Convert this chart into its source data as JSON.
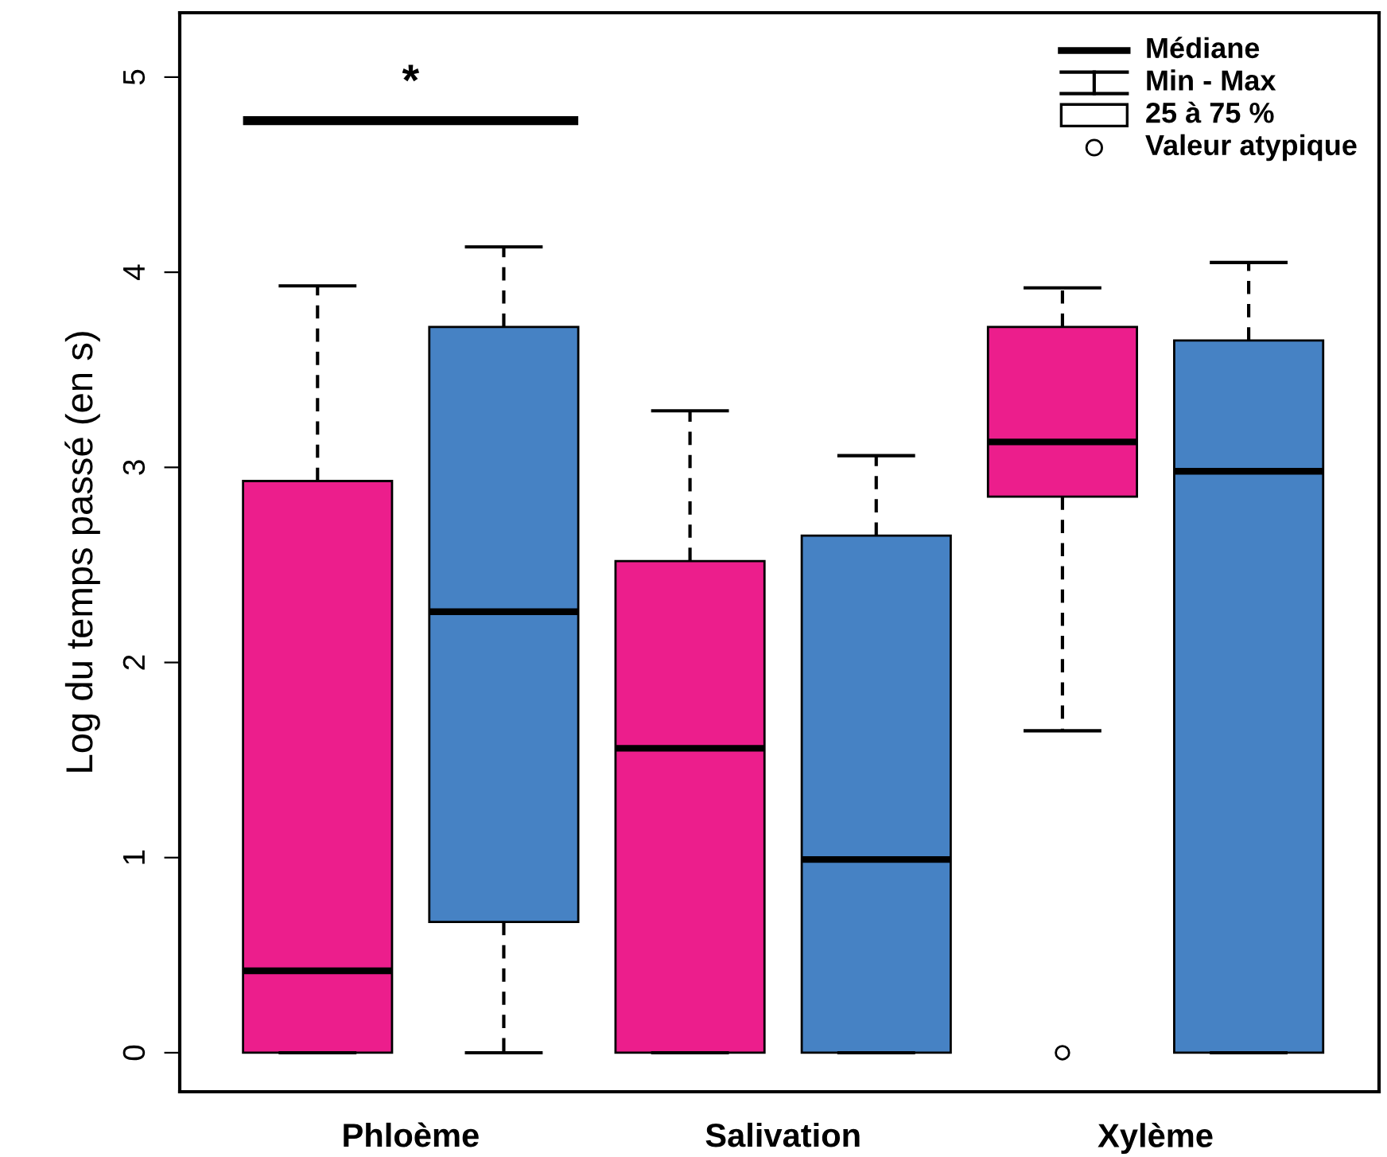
{
  "chart_data": {
    "type": "box",
    "ylabel": "Log du temps passé (en s)",
    "categories": [
      "Phloème",
      "Salivation",
      "Xylème"
    ],
    "series": [
      {
        "color": "#ec1e8c",
        "boxes": [
          {
            "low": 0,
            "q1": 0,
            "median": 0.42,
            "q3": 2.93,
            "high": 3.93
          },
          {
            "low": 0,
            "q1": 0,
            "median": 1.56,
            "q3": 2.52,
            "high": 3.29
          },
          {
            "low": 1.65,
            "q1": 2.85,
            "median": 3.13,
            "q3": 3.72,
            "high": 3.92,
            "outliers": [
              0
            ]
          }
        ]
      },
      {
        "color": "#4682c4",
        "boxes": [
          {
            "low": 0,
            "q1": 0.67,
            "median": 2.26,
            "q3": 3.72,
            "high": 4.13
          },
          {
            "low": 0,
            "q1": 0,
            "median": 0.99,
            "q3": 2.65,
            "high": 3.06
          },
          {
            "low": 0,
            "q1": 0,
            "median": 2.98,
            "q3": 3.65,
            "high": 4.05
          }
        ]
      }
    ],
    "ylim": [
      -0.2,
      5.33
    ],
    "yticks": [
      0,
      1,
      2,
      3,
      4,
      5
    ],
    "grid": false,
    "annotations": [
      "*",
      "Médiane",
      "Min - Max",
      "25 à 75 %",
      "Valeur atypique"
    ]
  }
}
